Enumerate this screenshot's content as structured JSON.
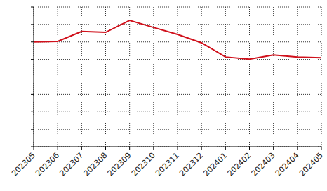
{
  "chart_data": {
    "type": "line",
    "categories": [
      "202305",
      "202306",
      "202307",
      "202308",
      "202309",
      "202310",
      "202311",
      "202312",
      "202401",
      "202402",
      "202403",
      "202404",
      "202405"
    ],
    "values": [
      6.0,
      6.03,
      6.6,
      6.55,
      7.23,
      6.83,
      6.43,
      5.95,
      5.14,
      5.02,
      5.26,
      5.14,
      5.1
    ],
    "color": "#d0101b",
    "ylim": [
      0,
      8
    ],
    "yticks": [
      0,
      1,
      2,
      3,
      4,
      5,
      6,
      7,
      8
    ],
    "grid": true,
    "tick_labels": "x"
  }
}
